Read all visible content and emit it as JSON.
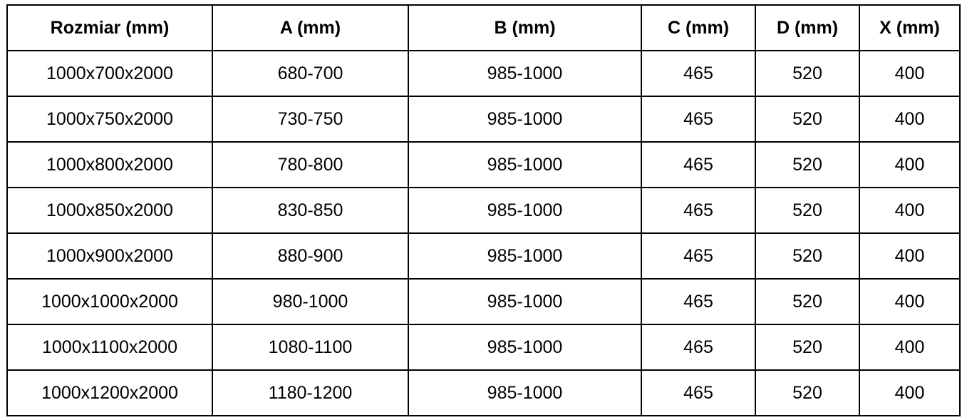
{
  "table": {
    "headers": [
      "Rozmiar (mm)",
      "A (mm)",
      "B (mm)",
      "C (mm)",
      "D (mm)",
      "X (mm)"
    ],
    "rows": [
      [
        "1000x700x2000",
        "680-700",
        "985-1000",
        "465",
        "520",
        "400"
      ],
      [
        "1000x750x2000",
        "730-750",
        "985-1000",
        "465",
        "520",
        "400"
      ],
      [
        "1000x800x2000",
        "780-800",
        "985-1000",
        "465",
        "520",
        "400"
      ],
      [
        "1000x850x2000",
        "830-850",
        "985-1000",
        "465",
        "520",
        "400"
      ],
      [
        "1000x900x2000",
        "880-900",
        "985-1000",
        "465",
        "520",
        "400"
      ],
      [
        "1000x1000x2000",
        "980-1000",
        "985-1000",
        "465",
        "520",
        "400"
      ],
      [
        "1000x1100x2000",
        "1080-1100",
        "985-1000",
        "465",
        "520",
        "400"
      ],
      [
        "1000x1200x2000",
        "1180-1200",
        "985-1000",
        "465",
        "520",
        "400"
      ]
    ]
  }
}
